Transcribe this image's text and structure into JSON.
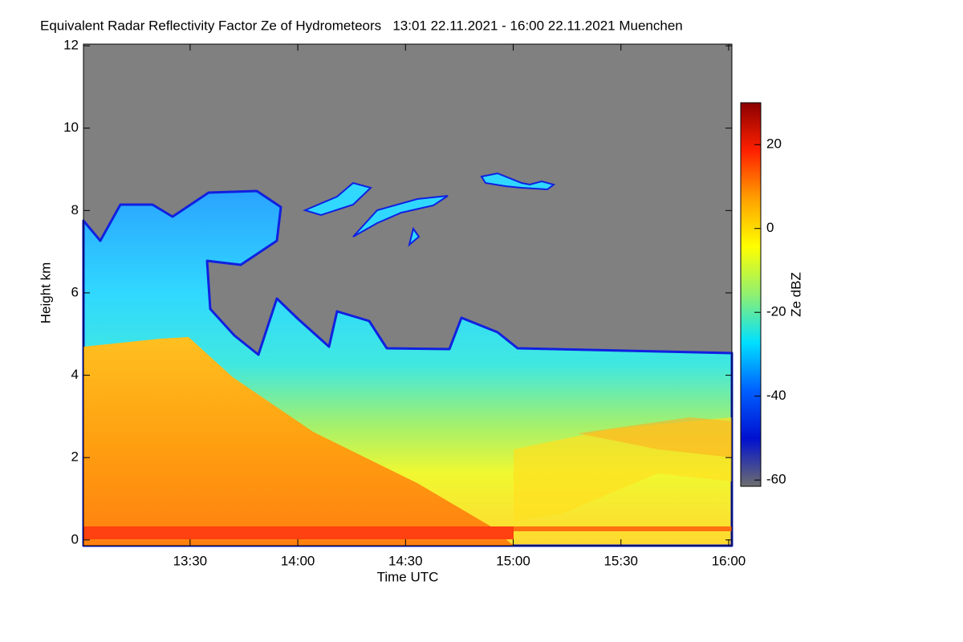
{
  "chart_data": {
    "type": "heatmap",
    "title": "Equivalent Radar Reflectivity Factor Ze of Hydrometeors   13:01 22.11.2021 - 16:00 22.11.2021 Muenchen",
    "x_label": "Time UTC",
    "y_label": "Height km",
    "colorbar_label": "Ze dBZ",
    "xlim": [
      13.005,
      16.015
    ],
    "xticks": [
      {
        "value": 13.5,
        "label": "13:30"
      },
      {
        "value": 14.0,
        "label": "14:00"
      },
      {
        "value": 14.5,
        "label": "14:30"
      },
      {
        "value": 15.0,
        "label": "15:00"
      },
      {
        "value": 15.5,
        "label": "15:30"
      },
      {
        "value": 16.0,
        "label": "16:00"
      }
    ],
    "ylim": [
      -0.14,
      12.04
    ],
    "yticks": [
      0,
      2,
      4,
      6,
      8,
      10,
      12
    ],
    "zlim": [
      -61.5,
      30
    ],
    "zticks": [
      -60,
      -40,
      -20,
      0,
      20
    ],
    "colormap": [
      "#6e6e6e",
      "#0010d0",
      "#0060ff",
      "#00e0ff",
      "#90f070",
      "#ffff00",
      "#ffa000",
      "#ff2000",
      "#8b0000"
    ]
  }
}
